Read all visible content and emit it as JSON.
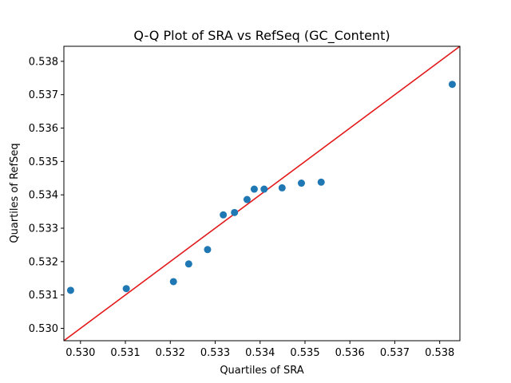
{
  "chart_data": {
    "type": "scatter",
    "title": "Q-Q Plot of SRA vs RefSeq (GC_Content)",
    "xlabel": "Quartiles of SRA",
    "ylabel": "Quartiles of RefSeq",
    "xlim": [
      0.52963,
      0.53845
    ],
    "ylim": [
      0.52963,
      0.53845
    ],
    "xticks": [
      "0.530",
      "0.531",
      "0.532",
      "0.533",
      "0.534",
      "0.535",
      "0.536",
      "0.537",
      "0.538"
    ],
    "yticks": [
      "0.530",
      "0.531",
      "0.532",
      "0.533",
      "0.534",
      "0.535",
      "0.536",
      "0.537",
      "0.538"
    ],
    "grid": false,
    "series": [
      {
        "color": "#1f77b4",
        "points": [
          [
            0.52978,
            0.53114
          ],
          [
            0.53102,
            0.53119
          ],
          [
            0.53207,
            0.5314
          ],
          [
            0.53241,
            0.53193
          ],
          [
            0.53283,
            0.53236
          ],
          [
            0.53318,
            0.5334
          ],
          [
            0.53343,
            0.53347
          ],
          [
            0.53371,
            0.53386
          ],
          [
            0.53387,
            0.53417
          ],
          [
            0.53409,
            0.53417
          ],
          [
            0.53449,
            0.53421
          ],
          [
            0.53492,
            0.53435
          ],
          [
            0.53536,
            0.53438
          ],
          [
            0.53828,
            0.53731
          ]
        ]
      }
    ],
    "reference_line": {
      "color": "#e31a1c",
      "from": [
        0.52963,
        0.52963
      ],
      "to": [
        0.53845,
        0.53845
      ]
    }
  }
}
